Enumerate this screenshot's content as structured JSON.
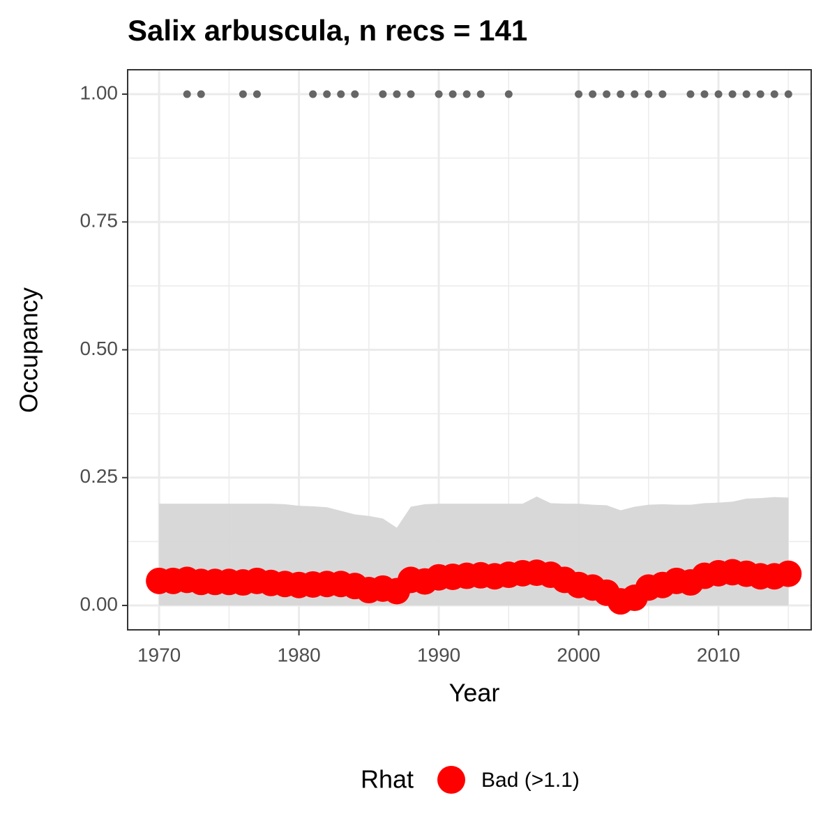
{
  "chart_data": {
    "type": "line",
    "title": "Salix arbuscula, n recs = 141",
    "x_label": "Year",
    "y_label": "Occupancy",
    "x": [
      1970,
      1971,
      1972,
      1973,
      1974,
      1975,
      1976,
      1977,
      1978,
      1979,
      1980,
      1981,
      1982,
      1983,
      1984,
      1985,
      1986,
      1987,
      1988,
      1989,
      1990,
      1991,
      1992,
      1993,
      1994,
      1995,
      1996,
      1997,
      1998,
      1999,
      2000,
      2001,
      2002,
      2003,
      2004,
      2005,
      2006,
      2007,
      2008,
      2009,
      2010,
      2011,
      2012,
      2013,
      2014,
      2015
    ],
    "series": [
      {
        "name": "Bad (>1.1)",
        "color": "#ff0000",
        "values": [
          0.048,
          0.048,
          0.05,
          0.046,
          0.046,
          0.046,
          0.045,
          0.048,
          0.044,
          0.042,
          0.04,
          0.041,
          0.042,
          0.042,
          0.038,
          0.03,
          0.033,
          0.028,
          0.05,
          0.047,
          0.055,
          0.056,
          0.058,
          0.059,
          0.057,
          0.06,
          0.063,
          0.064,
          0.06,
          0.05,
          0.04,
          0.035,
          0.025,
          0.008,
          0.015,
          0.035,
          0.04,
          0.048,
          0.045,
          0.058,
          0.063,
          0.065,
          0.062,
          0.057,
          0.057,
          0.062
        ]
      }
    ],
    "band": {
      "color": "#d6d6d6",
      "upper": [
        0.199,
        0.199,
        0.199,
        0.199,
        0.199,
        0.199,
        0.199,
        0.199,
        0.199,
        0.198,
        0.195,
        0.194,
        0.192,
        0.185,
        0.178,
        0.175,
        0.17,
        0.152,
        0.193,
        0.198,
        0.199,
        0.199,
        0.199,
        0.199,
        0.199,
        0.199,
        0.199,
        0.213,
        0.2,
        0.199,
        0.199,
        0.197,
        0.196,
        0.186,
        0.193,
        0.197,
        0.198,
        0.197,
        0.197,
        0.2,
        0.201,
        0.203,
        0.209,
        0.21,
        0.212,
        0.211
      ],
      "lower": [
        0,
        0,
        0,
        0,
        0,
        0,
        0,
        0,
        0,
        0,
        0,
        0,
        0,
        0,
        0,
        0,
        0,
        0,
        0,
        0,
        0,
        0,
        0,
        0,
        0,
        0,
        0,
        0,
        0,
        0,
        0,
        0,
        0,
        0,
        0,
        0,
        0,
        0,
        0,
        0,
        0,
        0,
        0,
        0,
        0,
        0
      ]
    },
    "detections": {
      "color": "#666666",
      "x": [
        1972,
        1973,
        1976,
        1977,
        1981,
        1982,
        1983,
        1984,
        1986,
        1987,
        1988,
        1990,
        1991,
        1992,
        1993,
        1995,
        2000,
        2001,
        2002,
        2003,
        2004,
        2005,
        2006,
        2008,
        2009,
        2010,
        2011,
        2012,
        2013,
        2014,
        2015
      ],
      "values": [
        1,
        1,
        1,
        1,
        1,
        1,
        1,
        1,
        1,
        1,
        1,
        1,
        1,
        1,
        1,
        1,
        1,
        1,
        1,
        1,
        1,
        1,
        1,
        1,
        1,
        1,
        1,
        1,
        1,
        1,
        1
      ]
    },
    "xlim": [
      1967.75,
      2016.63
    ],
    "ylim": [
      -0.0477,
      1.0477
    ],
    "xticks": [
      1970,
      1980,
      1990,
      2000,
      2010
    ],
    "yticks": [
      {
        "value": 0,
        "label": "0.00"
      },
      {
        "value": 0.25,
        "label": "0.25"
      },
      {
        "value": 0.5,
        "label": "0.50"
      },
      {
        "value": 0.75,
        "label": "0.75"
      },
      {
        "value": 1,
        "label": "1.00"
      }
    ],
    "minor_xticks": [
      1975,
      1985,
      1995,
      2005,
      2015
    ],
    "minor_yticks": [
      0.125,
      0.375,
      0.625,
      0.875
    ],
    "grid": true,
    "legend_title": "Rhat",
    "legend_position": "bottom"
  }
}
